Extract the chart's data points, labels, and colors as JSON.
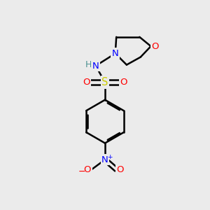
{
  "bg_color": "#ebebeb",
  "atom_colors": {
    "C": "#000000",
    "H": "#4a9090",
    "N": "#0000ff",
    "O": "#ff0000",
    "S": "#cccc00"
  },
  "figsize": [
    3.0,
    3.0
  ],
  "dpi": 100
}
